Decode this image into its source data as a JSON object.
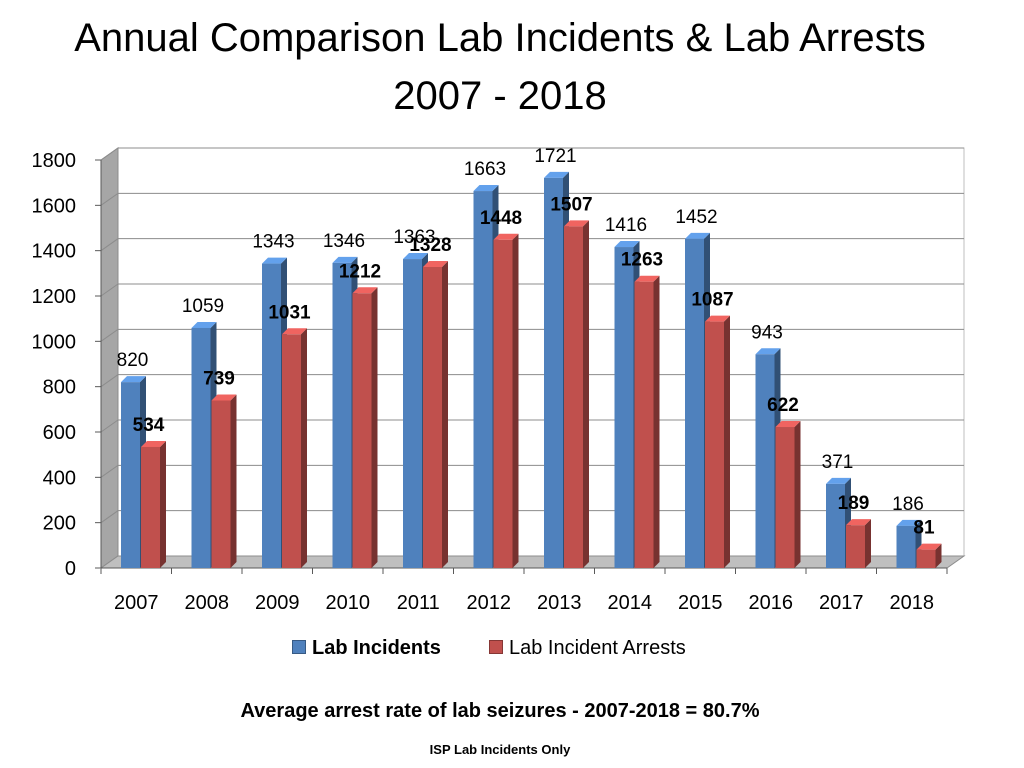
{
  "chart_data": {
    "type": "bar",
    "title_line1": "Annual Comparison Lab Incidents & Lab Arrests",
    "title_line2": "2007 - 2018",
    "categories": [
      "2007",
      "2008",
      "2009",
      "2010",
      "2011",
      "2012",
      "2013",
      "2014",
      "2015",
      "2016",
      "2017",
      "2018"
    ],
    "series": [
      {
        "name": "Lab Incidents",
        "color": "#4F81BD",
        "values": [
          820,
          1059,
          1343,
          1346,
          1363,
          1663,
          1721,
          1416,
          1452,
          943,
          371,
          186
        ]
      },
      {
        "name": "Lab Incident Arrests",
        "color": "#C0504D",
        "values": [
          534,
          739,
          1031,
          1212,
          1328,
          1448,
          1507,
          1263,
          1087,
          622,
          189,
          81
        ]
      }
    ],
    "ylim": [
      0,
      1800
    ],
    "yticks": [
      0,
      200,
      400,
      600,
      800,
      1000,
      1200,
      1400,
      1600,
      1800
    ],
    "grid": true,
    "legend_position": "bottom",
    "xlabel": "",
    "ylabel": ""
  },
  "footer_note": "Average arrest rate of lab seizures -  2007-2018 = 80.7%",
  "source_note": "ISP Lab Incidents Only"
}
